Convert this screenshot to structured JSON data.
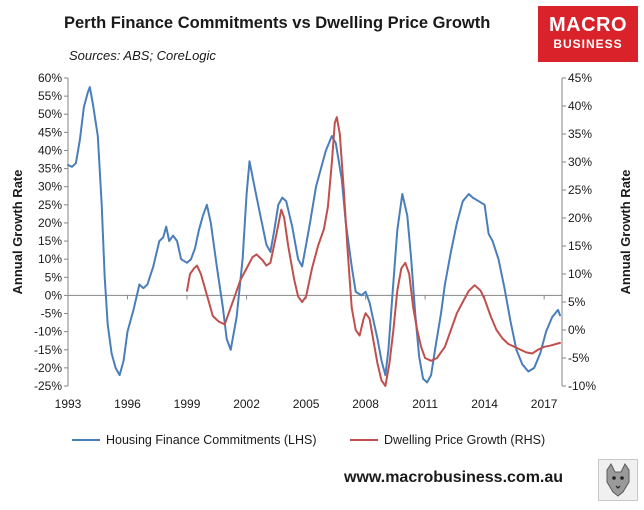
{
  "header": {
    "title": "Perth Finance Commitments vs Dwelling Price Growth",
    "subtitle": "Sources: ABS; CoreLogic"
  },
  "logo": {
    "line1": "MACRO",
    "line2": "BUSINESS"
  },
  "footer": {
    "url": "www.macrobusiness.com.au"
  },
  "colors": {
    "lhs": "#4a7ebb",
    "rhs": "#c0504d",
    "axis": "#868686",
    "logo_bg": "#d9222a"
  },
  "icons": {
    "badge": "wolf-mascot-icon"
  },
  "chart_data": {
    "type": "line",
    "ylabel_left": "Annual Growth Rate",
    "ylabel_right": "Annual Growth Rate",
    "xlim": [
      1993,
      2017.9
    ],
    "ylim_left": [
      -25,
      60
    ],
    "ylim_right": [
      -10,
      45
    ],
    "x_ticks": [
      {
        "value": 1993,
        "label": "1993"
      },
      {
        "value": 1996,
        "label": "1996"
      },
      {
        "value": 1999,
        "label": "1999"
      },
      {
        "value": 2002,
        "label": "2002"
      },
      {
        "value": 2005,
        "label": "2005"
      },
      {
        "value": 2008,
        "label": "2008"
      },
      {
        "value": 2011,
        "label": "2011"
      },
      {
        "value": 2014,
        "label": "2014"
      },
      {
        "value": 2017,
        "label": "2017"
      }
    ],
    "y_ticks_left": [
      {
        "value": 60,
        "label": "60%"
      },
      {
        "value": 55,
        "label": "55%"
      },
      {
        "value": 50,
        "label": "50%"
      },
      {
        "value": 45,
        "label": "45%"
      },
      {
        "value": 40,
        "label": "40%"
      },
      {
        "value": 35,
        "label": "35%"
      },
      {
        "value": 30,
        "label": "30%"
      },
      {
        "value": 25,
        "label": "25%"
      },
      {
        "value": 20,
        "label": "20%"
      },
      {
        "value": 15,
        "label": "15%"
      },
      {
        "value": 10,
        "label": "10%"
      },
      {
        "value": 5,
        "label": "5%"
      },
      {
        "value": 0,
        "label": "0%"
      },
      {
        "value": -5,
        "label": "-5%"
      },
      {
        "value": -10,
        "label": "-10%"
      },
      {
        "value": -15,
        "label": "-15%"
      },
      {
        "value": -20,
        "label": "-20%"
      },
      {
        "value": -25,
        "label": "-25%"
      }
    ],
    "y_ticks_right": [
      {
        "value": 45,
        "label": "45%"
      },
      {
        "value": 40,
        "label": "40%"
      },
      {
        "value": 35,
        "label": "35%"
      },
      {
        "value": 30,
        "label": "30%"
      },
      {
        "value": 25,
        "label": "25%"
      },
      {
        "value": 20,
        "label": "20%"
      },
      {
        "value": 15,
        "label": "15%"
      },
      {
        "value": 10,
        "label": "10%"
      },
      {
        "value": 5,
        "label": "5%"
      },
      {
        "value": 0,
        "label": "0%"
      },
      {
        "value": -5,
        "label": "-5%"
      },
      {
        "value": -10,
        "label": "-10%"
      }
    ],
    "grid": false,
    "legend_position": "bottom",
    "series": [
      {
        "name": "Housing Finance Commitments (LHS)",
        "axis": "left",
        "points": [
          [
            1993.0,
            36
          ],
          [
            1993.2,
            35.5
          ],
          [
            1993.4,
            36.5
          ],
          [
            1993.6,
            43
          ],
          [
            1993.8,
            52
          ],
          [
            1994.0,
            56
          ],
          [
            1994.1,
            57.5
          ],
          [
            1994.25,
            53
          ],
          [
            1994.5,
            44
          ],
          [
            1994.7,
            25
          ],
          [
            1994.85,
            5
          ],
          [
            1995.0,
            -8
          ],
          [
            1995.2,
            -16
          ],
          [
            1995.4,
            -20
          ],
          [
            1995.6,
            -22
          ],
          [
            1995.8,
            -18
          ],
          [
            1996.0,
            -10
          ],
          [
            1996.3,
            -4
          ],
          [
            1996.6,
            3
          ],
          [
            1996.8,
            2
          ],
          [
            1997.0,
            3
          ],
          [
            1997.3,
            8
          ],
          [
            1997.6,
            15
          ],
          [
            1997.8,
            16
          ],
          [
            1997.95,
            19
          ],
          [
            1998.1,
            15
          ],
          [
            1998.3,
            16.5
          ],
          [
            1998.5,
            15
          ],
          [
            1998.7,
            10
          ],
          [
            1999.0,
            9
          ],
          [
            1999.2,
            10
          ],
          [
            1999.4,
            13
          ],
          [
            1999.6,
            18
          ],
          [
            1999.8,
            22
          ],
          [
            2000.0,
            25
          ],
          [
            2000.2,
            20
          ],
          [
            2000.5,
            8
          ],
          [
            2000.8,
            -3
          ],
          [
            2001.0,
            -12
          ],
          [
            2001.2,
            -15
          ],
          [
            2001.5,
            -6
          ],
          [
            2001.8,
            10
          ],
          [
            2002.0,
            28
          ],
          [
            2002.15,
            37
          ],
          [
            2002.4,
            30
          ],
          [
            2002.7,
            22
          ],
          [
            2003.0,
            14
          ],
          [
            2003.2,
            12
          ],
          [
            2003.4,
            18
          ],
          [
            2003.6,
            25
          ],
          [
            2003.8,
            27
          ],
          [
            2004.0,
            26
          ],
          [
            2004.3,
            19
          ],
          [
            2004.6,
            10
          ],
          [
            2004.8,
            8
          ],
          [
            2005.0,
            14
          ],
          [
            2005.2,
            20
          ],
          [
            2005.5,
            30
          ],
          [
            2005.8,
            36
          ],
          [
            2006.0,
            40
          ],
          [
            2006.3,
            44
          ],
          [
            2006.5,
            42
          ],
          [
            2006.8,
            32
          ],
          [
            2007.0,
            20
          ],
          [
            2007.3,
            8
          ],
          [
            2007.5,
            1
          ],
          [
            2007.8,
            0
          ],
          [
            2008.0,
            1
          ],
          [
            2008.2,
            -2
          ],
          [
            2008.4,
            -7
          ],
          [
            2008.6,
            -12
          ],
          [
            2008.8,
            -18
          ],
          [
            2009.0,
            -22
          ],
          [
            2009.15,
            -15
          ],
          [
            2009.35,
            0
          ],
          [
            2009.6,
            18
          ],
          [
            2009.85,
            28
          ],
          [
            2010.1,
            22
          ],
          [
            2010.3,
            10
          ],
          [
            2010.5,
            -5
          ],
          [
            2010.7,
            -17
          ],
          [
            2010.9,
            -23
          ],
          [
            2011.1,
            -24
          ],
          [
            2011.3,
            -22
          ],
          [
            2011.5,
            -15
          ],
          [
            2011.8,
            -5
          ],
          [
            2012.0,
            3
          ],
          [
            2012.3,
            12
          ],
          [
            2012.6,
            20
          ],
          [
            2012.9,
            26
          ],
          [
            2013.2,
            28
          ],
          [
            2013.4,
            27
          ],
          [
            2013.7,
            26
          ],
          [
            2014.0,
            25
          ],
          [
            2014.2,
            17
          ],
          [
            2014.4,
            15
          ],
          [
            2014.7,
            10
          ],
          [
            2015.0,
            2
          ],
          [
            2015.3,
            -7
          ],
          [
            2015.6,
            -15
          ],
          [
            2015.9,
            -19
          ],
          [
            2016.2,
            -21
          ],
          [
            2016.5,
            -20
          ],
          [
            2016.8,
            -16
          ],
          [
            2017.1,
            -10
          ],
          [
            2017.4,
            -6
          ],
          [
            2017.7,
            -4
          ],
          [
            2017.8,
            -5.5
          ]
        ]
      },
      {
        "name": "Dwelling Price Growth (RHS)",
        "axis": "right",
        "points": [
          [
            1999.0,
            7
          ],
          [
            1999.15,
            10
          ],
          [
            1999.35,
            11
          ],
          [
            1999.5,
            11.5
          ],
          [
            1999.7,
            10
          ],
          [
            1999.9,
            7.5
          ],
          [
            2000.1,
            5
          ],
          [
            2000.3,
            2.5
          ],
          [
            2000.6,
            1.5
          ],
          [
            2000.9,
            1
          ],
          [
            2001.1,
            3
          ],
          [
            2001.4,
            6
          ],
          [
            2001.7,
            9
          ],
          [
            2002.0,
            11
          ],
          [
            2002.3,
            13
          ],
          [
            2002.5,
            13.5
          ],
          [
            2002.8,
            12.5
          ],
          [
            2003.0,
            11.5
          ],
          [
            2003.2,
            12
          ],
          [
            2003.5,
            17
          ],
          [
            2003.75,
            21.5
          ],
          [
            2003.9,
            20
          ],
          [
            2004.1,
            15
          ],
          [
            2004.4,
            9
          ],
          [
            2004.6,
            6
          ],
          [
            2004.8,
            5
          ],
          [
            2005.0,
            6
          ],
          [
            2005.3,
            11
          ],
          [
            2005.6,
            15
          ],
          [
            2005.9,
            18
          ],
          [
            2006.1,
            22
          ],
          [
            2006.3,
            30
          ],
          [
            2006.45,
            37
          ],
          [
            2006.55,
            38
          ],
          [
            2006.7,
            35
          ],
          [
            2006.9,
            25
          ],
          [
            2007.1,
            14
          ],
          [
            2007.3,
            4
          ],
          [
            2007.5,
            0
          ],
          [
            2007.7,
            -1
          ],
          [
            2007.9,
            2
          ],
          [
            2008.0,
            3
          ],
          [
            2008.2,
            2
          ],
          [
            2008.4,
            -2
          ],
          [
            2008.6,
            -6
          ],
          [
            2008.8,
            -9
          ],
          [
            2009.0,
            -10
          ],
          [
            2009.2,
            -6
          ],
          [
            2009.4,
            0
          ],
          [
            2009.6,
            7
          ],
          [
            2009.8,
            11
          ],
          [
            2010.0,
            12
          ],
          [
            2010.2,
            10
          ],
          [
            2010.4,
            4
          ],
          [
            2010.6,
            0
          ],
          [
            2010.8,
            -3
          ],
          [
            2011.0,
            -5
          ],
          [
            2011.3,
            -5.5
          ],
          [
            2011.6,
            -5
          ],
          [
            2012.0,
            -3
          ],
          [
            2012.3,
            0
          ],
          [
            2012.6,
            3
          ],
          [
            2012.9,
            5
          ],
          [
            2013.2,
            7
          ],
          [
            2013.5,
            8
          ],
          [
            2013.8,
            7
          ],
          [
            2014.0,
            5.5
          ],
          [
            2014.3,
            2.5
          ],
          [
            2014.6,
            0
          ],
          [
            2014.9,
            -1.5
          ],
          [
            2015.2,
            -2.5
          ],
          [
            2015.5,
            -3
          ],
          [
            2015.8,
            -3.5
          ],
          [
            2016.1,
            -4
          ],
          [
            2016.4,
            -4.2
          ],
          [
            2016.7,
            -3.5
          ],
          [
            2017.0,
            -3
          ],
          [
            2017.3,
            -2.8
          ],
          [
            2017.6,
            -2.5
          ],
          [
            2017.8,
            -2.3
          ]
        ]
      }
    ]
  }
}
